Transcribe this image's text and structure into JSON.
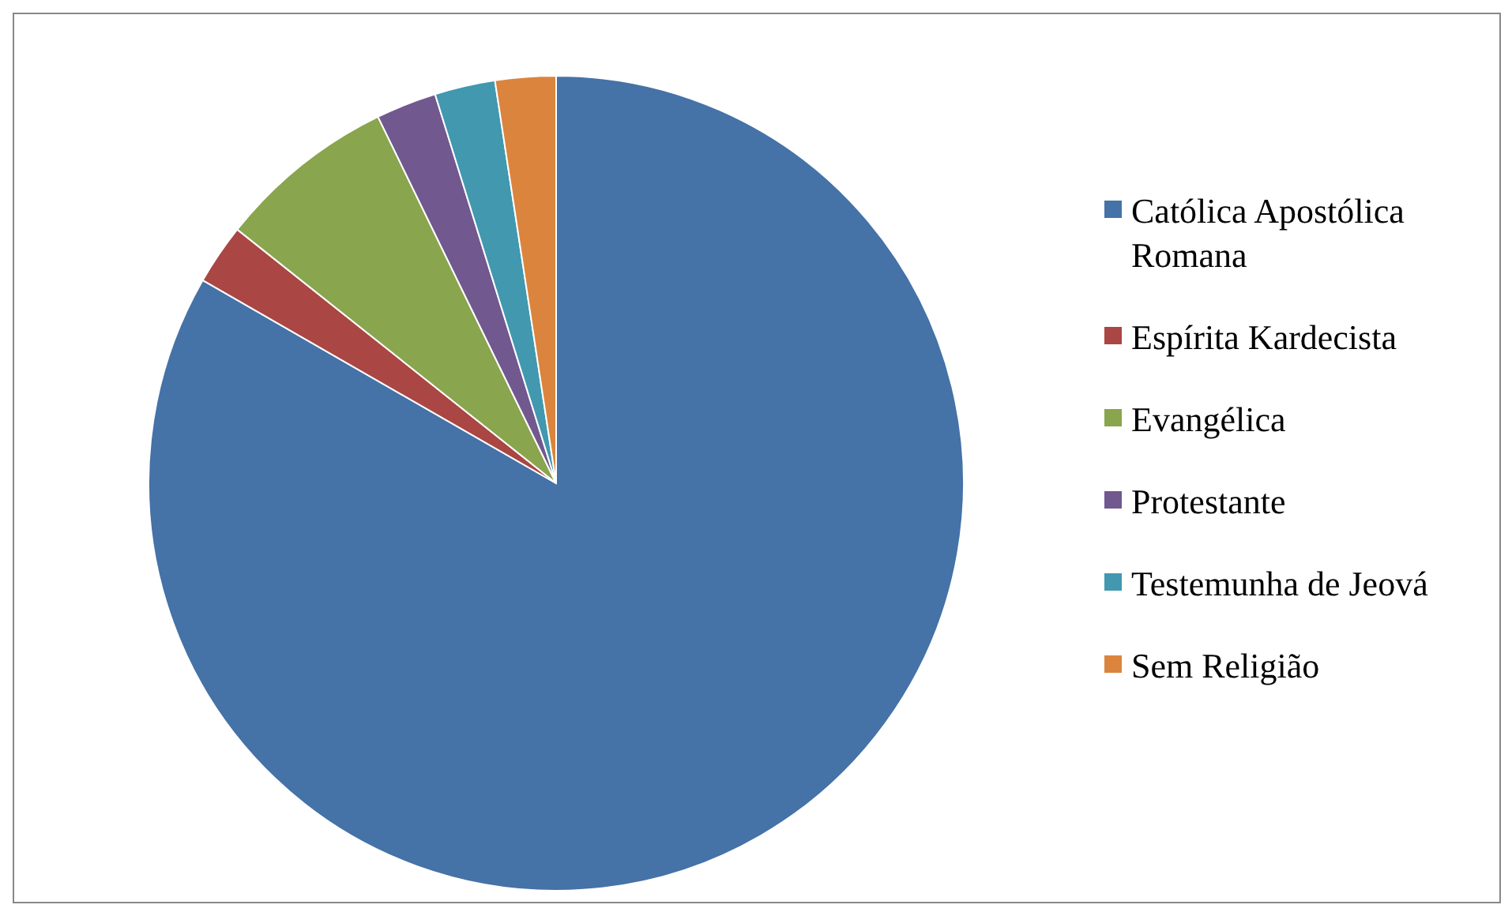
{
  "chart_data": {
    "type": "pie",
    "categories": [
      "Católica Apostólica Romana",
      "Espírita Kardecista",
      "Evangélica",
      "Protestante",
      "Testemunha de Jeová",
      "Sem Religião"
    ],
    "values": [
      83.3,
      2.4,
      7.1,
      2.4,
      2.4,
      2.4
    ],
    "colors": [
      "#4572a7",
      "#aa4643",
      "#89a54e",
      "#71588f",
      "#4198af",
      "#db843d"
    ],
    "legend": "right"
  }
}
